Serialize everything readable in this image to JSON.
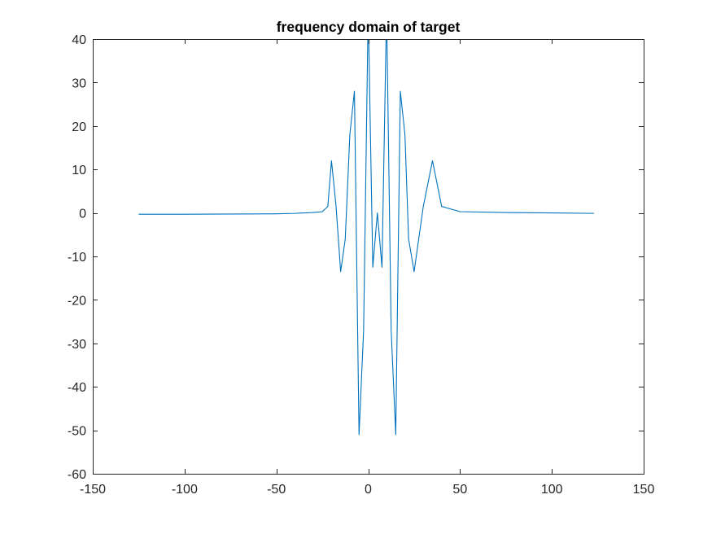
{
  "chart_data": {
    "type": "line",
    "title": "frequency domain of target",
    "xlabel": "",
    "ylabel": "",
    "xlim": [
      -150,
      150
    ],
    "ylim": [
      -60,
      40
    ],
    "xticks": [
      -150,
      -100,
      -50,
      0,
      50,
      100,
      150
    ],
    "yticks": [
      -60,
      -50,
      -40,
      -30,
      -20,
      -10,
      0,
      10,
      20,
      30,
      40
    ],
    "xtick_labels": [
      "-150",
      "-100",
      "-50",
      "0",
      "50",
      "100",
      "150"
    ],
    "ytick_labels": [
      "-60",
      "-50",
      "-40",
      "-30",
      "-20",
      "-10",
      "0",
      "10",
      "20",
      "30",
      "40"
    ],
    "grid": false,
    "box": true,
    "series": [
      {
        "color": "#0072BD",
        "x": [
          -125,
          -100,
          -75,
          -50,
          -40,
          -35,
          -30,
          -25,
          -22,
          -20,
          -17.5,
          -15,
          -12.5,
          -10,
          -7.5,
          -5,
          -2.5,
          0,
          2.5,
          5,
          7.5,
          10,
          12.5,
          15,
          17.5,
          20,
          22,
          25,
          30,
          35,
          40,
          50,
          75,
          100,
          123
        ],
        "y": [
          -0.3,
          -0.3,
          -0.25,
          -0.2,
          -0.1,
          0,
          0.1,
          0.3,
          1.5,
          12,
          1.5,
          -13.5,
          -6,
          18,
          28,
          -51,
          -27,
          47,
          -12.5,
          0,
          -12.5,
          47,
          -27,
          -51,
          28,
          18,
          -6,
          -13.5,
          1.5,
          12,
          1.5,
          0.3,
          0.1,
          0,
          -0.1
        ]
      }
    ]
  }
}
